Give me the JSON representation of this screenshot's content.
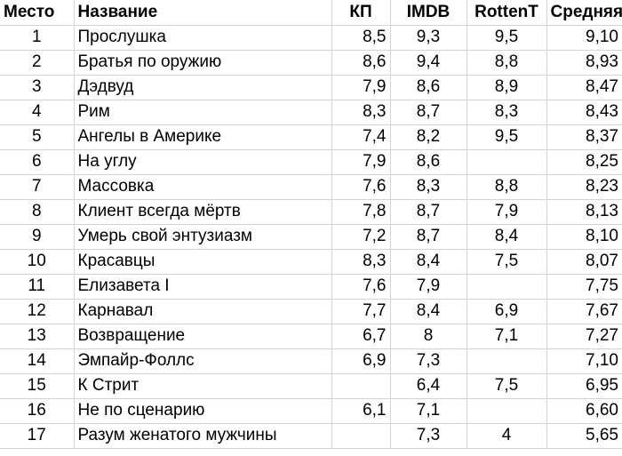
{
  "headers": {
    "rank": "Место",
    "title": "Название",
    "kp": "КП",
    "imdb": "IMDB",
    "rt": "RottenT",
    "avg": "Средняя"
  },
  "rows": [
    {
      "rank": "1",
      "title": "Прослушка",
      "kp": "8,5",
      "imdb": "9,3",
      "rt": "9,5",
      "avg": "9,10"
    },
    {
      "rank": "2",
      "title": "Братья по оружию",
      "kp": "8,6",
      "imdb": "9,4",
      "rt": "8,8",
      "avg": "8,93"
    },
    {
      "rank": "3",
      "title": "Дэдвуд",
      "kp": "7,9",
      "imdb": "8,6",
      "rt": "8,9",
      "avg": "8,47"
    },
    {
      "rank": "4",
      "title": "Рим",
      "kp": "8,3",
      "imdb": "8,7",
      "rt": "8,3",
      "avg": "8,43"
    },
    {
      "rank": "5",
      "title": "Ангелы в Америке",
      "kp": "7,4",
      "imdb": "8,2",
      "rt": "9,5",
      "avg": "8,37"
    },
    {
      "rank": "6",
      "title": "На углу",
      "kp": "7,9",
      "imdb": "8,6",
      "rt": "",
      "avg": "8,25"
    },
    {
      "rank": "7",
      "title": "Массовка",
      "kp": "7,6",
      "imdb": "8,3",
      "rt": "8,8",
      "avg": "8,23"
    },
    {
      "rank": "8",
      "title": "Клиент всегда мёртв",
      "kp": "7,8",
      "imdb": "8,7",
      "rt": "7,9",
      "avg": "8,13"
    },
    {
      "rank": "9",
      "title": "Умерь свой энтузиазм",
      "kp": "7,2",
      "imdb": "8,7",
      "rt": "8,4",
      "avg": "8,10"
    },
    {
      "rank": "10",
      "title": "Красавцы",
      "kp": "8,3",
      "imdb": "8,4",
      "rt": "7,5",
      "avg": "8,07"
    },
    {
      "rank": "11",
      "title": "Елизавета I",
      "kp": "7,6",
      "imdb": "7,9",
      "rt": "",
      "avg": "7,75"
    },
    {
      "rank": "12",
      "title": "Карнавал",
      "kp": "7,7",
      "imdb": "8,4",
      "rt": "6,9",
      "avg": "7,67"
    },
    {
      "rank": "13",
      "title": "Возвращение",
      "kp": "6,7",
      "imdb": "8",
      "rt": "7,1",
      "avg": "7,27"
    },
    {
      "rank": "14",
      "title": "Эмпайр-Фоллс",
      "kp": "6,9",
      "imdb": "7,3",
      "rt": "",
      "avg": "7,10"
    },
    {
      "rank": "15",
      "title": "К Стрит",
      "kp": "",
      "imdb": "6,4",
      "rt": "7,5",
      "avg": "6,95"
    },
    {
      "rank": "16",
      "title": "Не по сценарию",
      "kp": "6,1",
      "imdb": "7,1",
      "rt": "",
      "avg": "6,60"
    },
    {
      "rank": "17",
      "title": "Разум женатого мужчины",
      "kp": "",
      "imdb": "7,3",
      "rt": "4",
      "avg": "5,65"
    }
  ]
}
